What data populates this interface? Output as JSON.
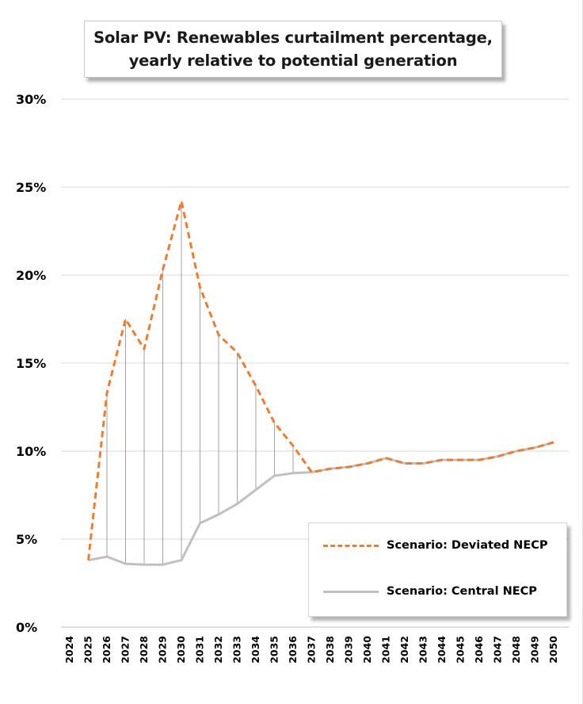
{
  "chart_data": {
    "type": "line",
    "title": "Solar PV: Renewables curtailment percentage,",
    "subtitle": "yearly relative to potential generation",
    "xlabel": "",
    "ylabel": "",
    "categories": [
      "2024",
      "2025",
      "2026",
      "2027",
      "2028",
      "2029",
      "2030",
      "2031",
      "2032",
      "2033",
      "2034",
      "2035",
      "2036",
      "2037",
      "2038",
      "2039",
      "2040",
      "2041",
      "2042",
      "2043",
      "2044",
      "2045",
      "2046",
      "2047",
      "2048",
      "2049",
      "2050"
    ],
    "ylim": [
      0,
      30
    ],
    "y_ticks": [
      0,
      5,
      10,
      15,
      20,
      25,
      30
    ],
    "y_tick_labels": [
      "0%",
      "5%",
      "10%",
      "15%",
      "20%",
      "25%",
      "30%"
    ],
    "grid": true,
    "legend_position": "bottom-right",
    "drop_lines": true,
    "series": [
      {
        "name": "Scenario: Deviated NECP",
        "color": "#ED7D31",
        "style": "dashed",
        "values": [
          null,
          3.8,
          13.3,
          17.5,
          15.8,
          20.3,
          24.2,
          19.3,
          16.6,
          15.6,
          13.7,
          11.6,
          10.3,
          8.8,
          9.0,
          9.1,
          9.3,
          9.6,
          9.3,
          9.3,
          9.5,
          9.5,
          9.5,
          9.7,
          10.0,
          10.2,
          10.5
        ]
      },
      {
        "name": "Scenario: Central NECP",
        "color": "#C0C0C0",
        "style": "solid",
        "values": [
          null,
          3.8,
          4.0,
          3.6,
          3.55,
          3.55,
          3.8,
          5.9,
          6.4,
          7.0,
          7.8,
          8.6,
          8.75,
          8.8,
          9.0,
          9.1,
          9.3,
          9.6,
          9.3,
          9.3,
          9.5,
          9.5,
          9.5,
          9.7,
          10.0,
          10.2,
          10.5
        ]
      }
    ]
  }
}
